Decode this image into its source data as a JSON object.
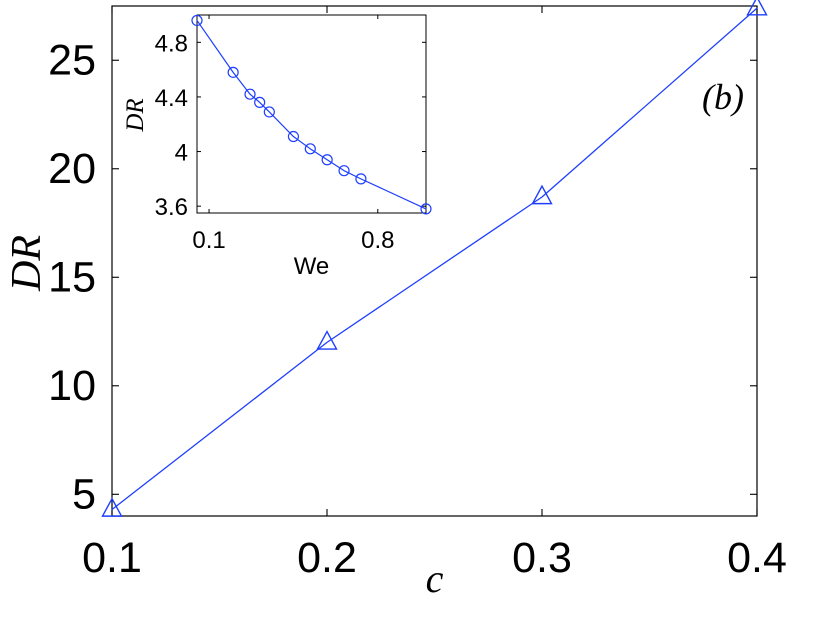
{
  "chart_data": [
    {
      "type": "line",
      "x": [
        0.1,
        0.2,
        0.3,
        0.4
      ],
      "series": [
        {
          "values": [
            4.3,
            12.0,
            18.7,
            27.4
          ],
          "marker": "triangle",
          "color": "#1f3fff"
        }
      ],
      "xlabel": "c",
      "ylabel": "DR",
      "annotation": "(b)",
      "xlim": [
        0.1,
        0.4
      ],
      "ylim": [
        4,
        27.5
      ],
      "xticks": [
        0.1,
        0.2,
        0.3,
        0.4
      ],
      "xtick_labels": [
        "0.1",
        "0.2",
        "0.3",
        "0.4"
      ],
      "yticks": [
        5,
        10,
        15,
        20,
        25
      ],
      "ytick_labels": [
        "5",
        "10",
        "15",
        "20",
        "25"
      ],
      "grid": false
    },
    {
      "type": "line",
      "x": [
        0.05,
        0.2,
        0.27,
        0.31,
        0.35,
        0.45,
        0.52,
        0.59,
        0.66,
        0.73,
        1.0
      ],
      "series": [
        {
          "values": [
            4.96,
            4.58,
            4.42,
            4.36,
            4.29,
            4.11,
            4.02,
            3.94,
            3.86,
            3.8,
            3.58
          ],
          "marker": "circle",
          "color": "#1f3fff"
        }
      ],
      "xlabel": "We",
      "ylabel": "DR",
      "xlim": [
        0.05,
        1.0
      ],
      "ylim": [
        3.55,
        5.0
      ],
      "xticks": [
        0.1,
        0.8
      ],
      "xtick_labels": [
        "0.1",
        "0.8"
      ],
      "yticks": [
        3.6,
        4.0,
        4.4,
        4.8
      ],
      "ytick_labels": [
        "3.6",
        "4",
        "4.4",
        "4.8"
      ],
      "grid": false
    }
  ]
}
